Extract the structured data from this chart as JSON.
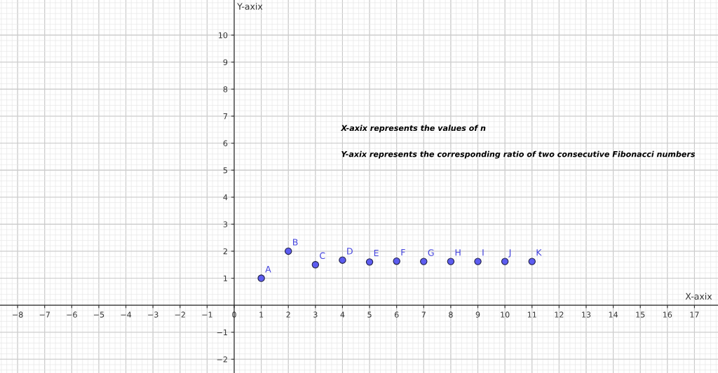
{
  "chart_data": {
    "type": "scatter",
    "xlabel": "X-axix",
    "ylabel": "Y-axix",
    "x": [
      1,
      2,
      3,
      4,
      5,
      6,
      7,
      8,
      9,
      10,
      11
    ],
    "series": [
      {
        "color": "#5c5cf0",
        "values": [
          1,
          2,
          1.5,
          1.67,
          1.6,
          1.63,
          1.62,
          1.62,
          1.62,
          1.62,
          1.62
        ]
      }
    ],
    "marker": "circle",
    "xlim": [
      -8.65,
      17.87
    ],
    "ylim": [
      -2.51,
      11.3
    ],
    "xticks": [
      {
        "value": -8,
        "label": "−8"
      },
      {
        "value": -7,
        "label": "−7"
      },
      {
        "value": -6,
        "label": "−6"
      },
      {
        "value": -5,
        "label": "−5"
      },
      {
        "value": -4,
        "label": "−4"
      },
      {
        "value": -3,
        "label": "−3"
      },
      {
        "value": -2,
        "label": "−2"
      },
      {
        "value": -1,
        "label": "−1"
      },
      0,
      1,
      2,
      3,
      4,
      5,
      6,
      7,
      8,
      9,
      10,
      11,
      12,
      13,
      14,
      15,
      16,
      17
    ],
    "yticks": [
      {
        "value": -2,
        "label": "−2"
      },
      {
        "value": -1,
        "label": "−1"
      },
      1,
      2,
      3,
      4,
      5,
      6,
      7,
      8,
      9,
      10
    ],
    "grid": true,
    "annotations": [
      {
        "text": "A",
        "x": 1,
        "y": 1
      },
      {
        "text": "B",
        "x": 2,
        "y": 2
      },
      {
        "text": "C",
        "x": 3,
        "y": 1.5
      },
      {
        "text": "D",
        "x": 4,
        "y": 1.667
      },
      {
        "text": "E",
        "x": 5,
        "y": 1.6
      },
      {
        "text": "F",
        "x": 6,
        "y": 1.625
      },
      {
        "text": "G",
        "x": 7,
        "y": 1.615
      },
      {
        "text": "H",
        "x": 8,
        "y": 1.619
      },
      {
        "text": "I",
        "x": 9,
        "y": 1.618
      },
      {
        "text": "J",
        "x": 10,
        "y": 1.618
      },
      {
        "text": "K",
        "x": 11,
        "y": 1.618
      },
      "X-axix represents the values of n",
      "Y-axix represents the corresponding ratio of two consecutive Fibonacci numbers"
    ]
  }
}
